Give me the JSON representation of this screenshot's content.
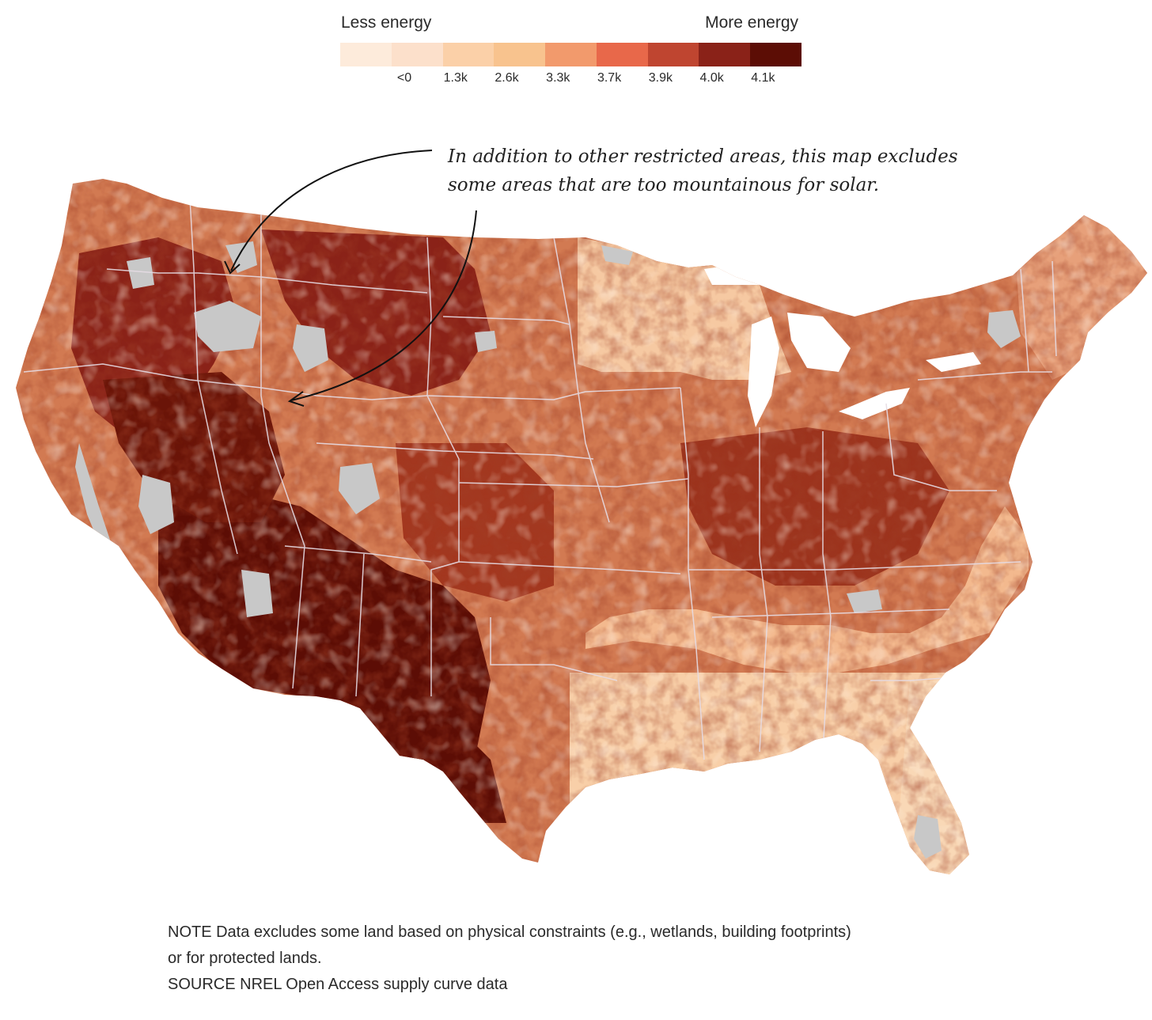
{
  "legend": {
    "low_label": "Less energy",
    "high_label": "More energy",
    "colors": [
      "#fdebdb",
      "#fce0cb",
      "#fbd0a8",
      "#f8c38e",
      "#f29a6c",
      "#e8684a",
      "#bf4530",
      "#8a2218",
      "#5c0d05"
    ],
    "ticks": [
      "<0",
      "1.3k",
      "2.6k",
      "3.3k",
      "3.7k",
      "3.9k",
      "4.0k",
      "4.1k"
    ]
  },
  "annotation": {
    "line1": "In addition to other restricted areas, this map excludes",
    "line2": "some areas that are too mountainous for solar."
  },
  "notes": {
    "note_line1": "NOTE Data excludes some land based on physical constraints (e.g., wetlands, building footprints)",
    "note_line2": "or for protected lands.",
    "source": "SOURCE NREL Open Access supply curve data"
  },
  "map": {
    "excluded_color": "#c8c8c8",
    "state_border_color": "#e6dce4"
  }
}
